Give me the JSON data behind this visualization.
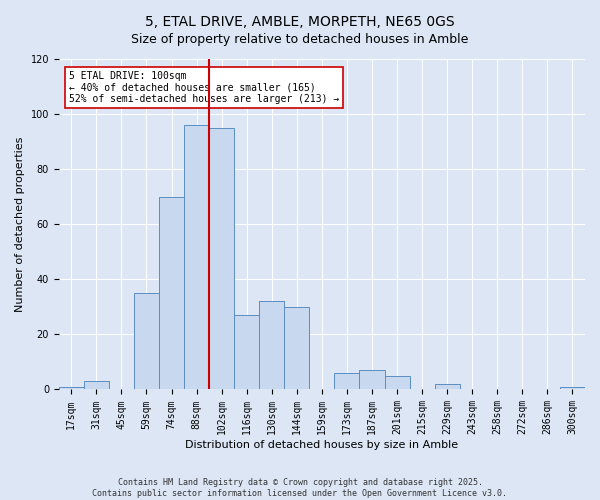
{
  "title": "5, ETAL DRIVE, AMBLE, MORPETH, NE65 0GS",
  "subtitle": "Size of property relative to detached houses in Amble",
  "xlabel": "Distribution of detached houses by size in Amble",
  "ylabel": "Number of detached properties",
  "bar_labels": [
    "17sqm",
    "31sqm",
    "45sqm",
    "59sqm",
    "74sqm",
    "88sqm",
    "102sqm",
    "116sqm",
    "130sqm",
    "144sqm",
    "159sqm",
    "173sqm",
    "187sqm",
    "201sqm",
    "215sqm",
    "229sqm",
    "243sqm",
    "258sqm",
    "272sqm",
    "286sqm",
    "300sqm"
  ],
  "bar_values": [
    1,
    3,
    0,
    35,
    70,
    96,
    95,
    27,
    32,
    30,
    0,
    6,
    7,
    5,
    0,
    2,
    0,
    0,
    0,
    0,
    1
  ],
  "bar_color": "#c8d9ef",
  "bar_edge_color": "#5b8ec4",
  "vline_color": "#cc0000",
  "vline_index": 6,
  "ylim": [
    0,
    120
  ],
  "yticks": [
    0,
    20,
    40,
    60,
    80,
    100,
    120
  ],
  "annotation_title": "5 ETAL DRIVE: 100sqm",
  "annotation_line1": "← 40% of detached houses are smaller (165)",
  "annotation_line2": "52% of semi-detached houses are larger (213) →",
  "annotation_box_facecolor": "#ffffff",
  "annotation_box_edgecolor": "#cc0000",
  "footer_line1": "Contains HM Land Registry data © Crown copyright and database right 2025.",
  "footer_line2": "Contains public sector information licensed under the Open Government Licence v3.0.",
  "bg_color": "#dce6f5",
  "plot_bg_color": "#dce6f5",
  "grid_color": "#ffffff",
  "title_fontsize": 10,
  "subtitle_fontsize": 9,
  "axis_label_fontsize": 8,
  "tick_fontsize": 7,
  "annotation_fontsize": 7,
  "footer_fontsize": 6
}
